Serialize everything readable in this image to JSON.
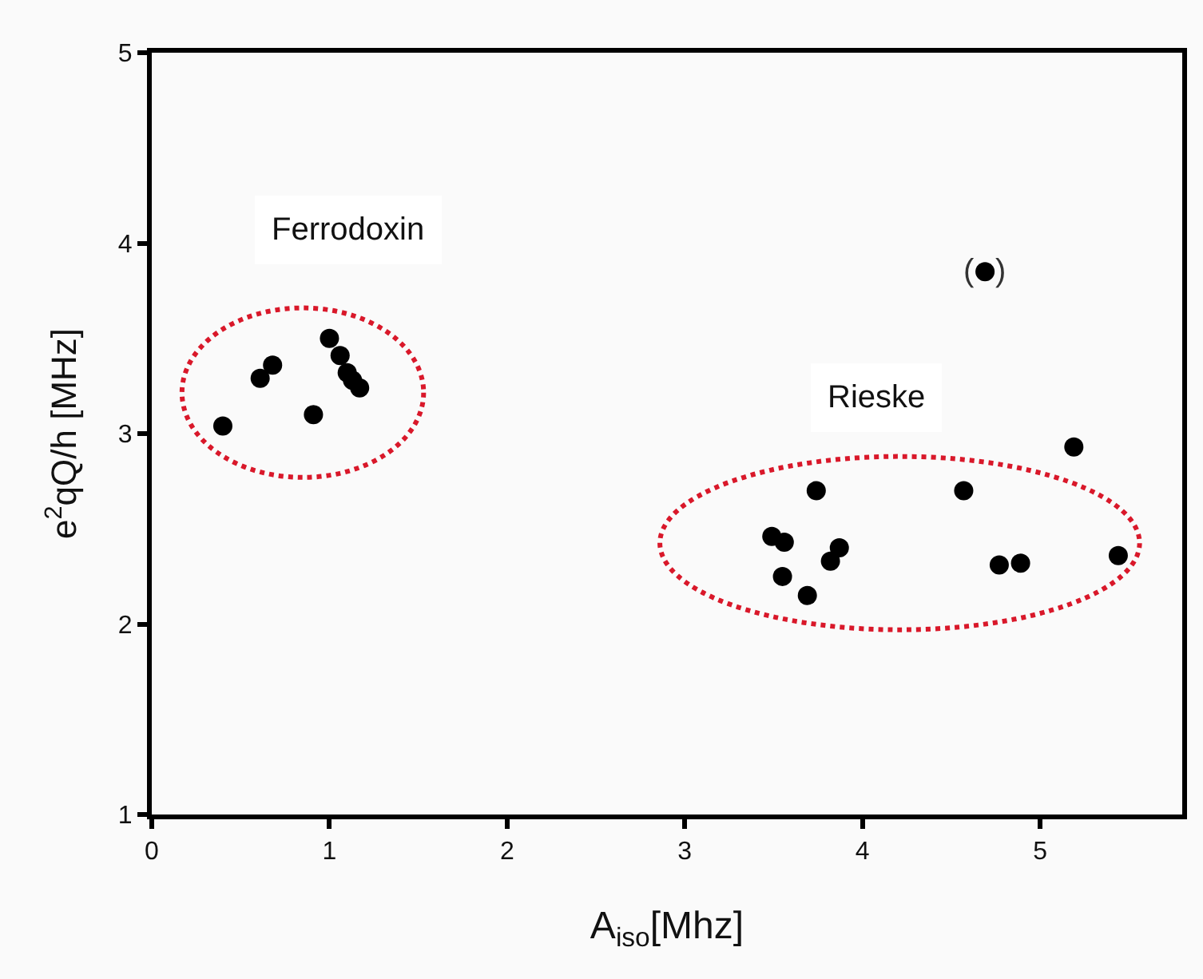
{
  "chart_data": {
    "type": "scatter",
    "xlabel": "A$_{iso}$[Mhz]",
    "ylabel": "e$^{2}$qQ/h [MHz]",
    "x": [
      0.4,
      0.61,
      0.68,
      1.0,
      1.06,
      1.1,
      1.13,
      1.17,
      0.91,
      4.69,
      5.19,
      3.74,
      4.57,
      3.49,
      3.56,
      3.87,
      3.82,
      3.55,
      3.69,
      4.77,
      4.89,
      5.44
    ],
    "values": [
      3.04,
      3.29,
      3.36,
      3.5,
      3.41,
      3.32,
      3.28,
      3.24,
      3.1,
      3.85,
      2.93,
      2.7,
      2.7,
      2.46,
      2.43,
      2.4,
      2.33,
      2.25,
      2.15,
      2.31,
      2.32,
      2.36
    ],
    "color": "#000000",
    "marker": "circle",
    "grid": false,
    "xlim": [
      0,
      5.8
    ],
    "xticks": [
      0,
      1,
      2,
      3,
      4,
      5
    ],
    "ylim": [
      1,
      5
    ],
    "yticks": [
      1,
      2,
      3,
      4,
      5
    ],
    "annotations": [
      "Ferrodoxin",
      "Rieske",
      {
        "text": "(",
        "x": 4.6,
        "y": 3.85
      },
      {
        "text": ")",
        "x": 4.78,
        "y": 3.85
      }
    ]
  }
}
